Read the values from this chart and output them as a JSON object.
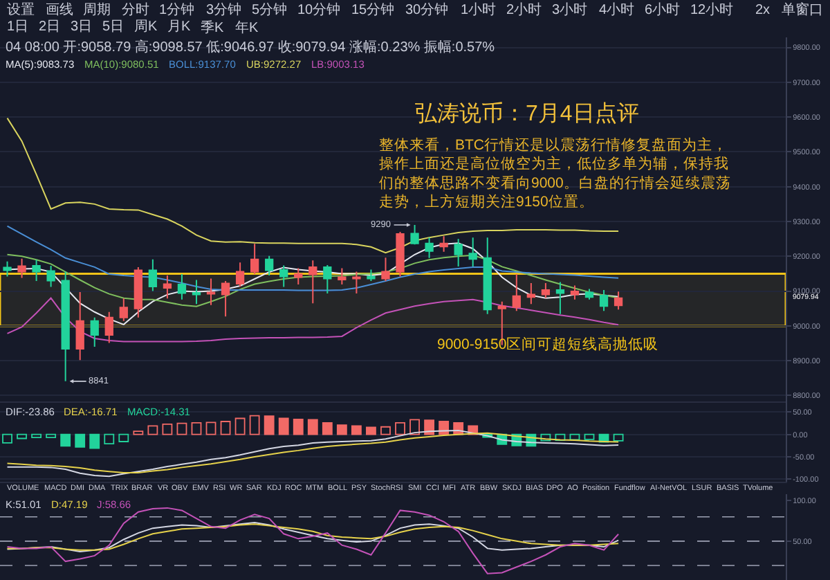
{
  "chart_data": [
    {
      "type": "candlestick",
      "title": "弘涛说币：7月4日点评",
      "subtitle": "整体来看，BTC行情还是以震荡行情修复盘面为主，操作上面还是高位做空为主，低位多单为辅，保持我们的整体思路不变看向9000。白盘的行情会延续震荡走势，上方短期关注9150位置。",
      "categories": [
        null,
        null,
        null,
        null,
        null,
        null,
        null,
        null,
        null,
        null,
        null,
        null,
        null,
        null,
        null,
        null,
        null,
        null,
        null,
        null,
        null,
        null,
        null,
        null,
        null,
        null,
        null,
        null,
        null,
        null,
        null,
        null,
        null,
        null,
        null,
        null,
        null,
        null,
        null,
        null,
        null,
        null,
        null,
        null,
        null,
        null,
        null,
        null,
        null,
        null,
        null,
        null,
        null,
        null
      ],
      "ohlc": [
        [
          9168,
          9185,
          9142,
          9160
        ],
        [
          9156,
          9193,
          9138,
          9172
        ],
        [
          9173,
          9190,
          9129,
          9156
        ],
        [
          9158,
          9173,
          9112,
          9130
        ],
        [
          9130,
          9156,
          8841,
          8934
        ],
        [
          8934,
          9097,
          8902,
          9014
        ],
        [
          9014,
          9024,
          8940,
          8974
        ],
        [
          8974,
          9040,
          8951,
          9024
        ],
        [
          9024,
          9079,
          9014,
          9053
        ],
        [
          9050,
          9169,
          9024,
          9160
        ],
        [
          9160,
          9191,
          9100,
          9113
        ],
        [
          9109,
          9145,
          9079,
          9120
        ],
        [
          9119,
          9149,
          9076,
          9094
        ],
        [
          9095,
          9132,
          9063,
          9090
        ],
        [
          9092,
          9136,
          9060,
          9096
        ],
        [
          9090,
          9129,
          9027,
          9122
        ],
        [
          9121,
          9182,
          9113,
          9156
        ],
        [
          9156,
          9236,
          9149,
          9191
        ],
        [
          9191,
          9201,
          9145,
          9160
        ],
        [
          9161,
          9174,
          9112,
          9142
        ],
        [
          9140,
          9166,
          9119,
          9149
        ],
        [
          9148,
          9188,
          9065,
          9169
        ],
        [
          9169,
          9175,
          9093,
          9136
        ],
        [
          9133,
          9166,
          9119,
          9140
        ],
        [
          9136,
          9156,
          9093,
          9140
        ],
        [
          9142,
          9162,
          9129,
          9136
        ],
        [
          9136,
          9196,
          9129,
          9156
        ],
        [
          9156,
          9270,
          9142,
          9264
        ],
        [
          9265,
          9290,
          9234,
          9237
        ],
        [
          9237,
          9254,
          9195,
          9215
        ],
        [
          9228,
          9258,
          9213,
          9237
        ],
        [
          9234,
          9250,
          9171,
          9205
        ],
        [
          9208,
          9254,
          9171,
          9192
        ],
        [
          9195,
          9254,
          9034,
          9047
        ],
        [
          9050,
          9070,
          8945,
          9056
        ],
        [
          9054,
          9149,
          9043,
          9086
        ],
        [
          9083,
          9123,
          9063,
          9090
        ],
        [
          9090,
          9123,
          9080,
          9103
        ],
        [
          9103,
          9126,
          9034,
          9094
        ],
        [
          9090,
          9116,
          9076,
          9099
        ],
        [
          9096,
          9106,
          9076,
          9083
        ],
        [
          9087,
          9103,
          9043,
          9057
        ],
        [
          9058.79,
          9098.57,
          9046.97,
          9079.94
        ],
        null,
        null,
        null,
        null,
        null,
        null,
        null,
        null,
        null,
        null,
        null
      ],
      "colors": [
        "#22d39b",
        "#f25b5e",
        "#22d39b",
        "#22d39b",
        "#22d39b",
        "#f25b5e",
        "#22d39b",
        "#f25b5e",
        "#f25b5e",
        "#f25b5e",
        "#22d39b",
        "#f25b5e",
        "#22d39b",
        "#22d39b",
        "#f25b5e",
        "#f25b5e",
        "#f25b5e",
        "#f25b5e",
        "#22d39b",
        "#22d39b",
        "#f25b5e",
        "#f25b5e",
        "#22d39b",
        "#f25b5e",
        "#f25b5e",
        "#22d39b",
        "#f25b5e",
        "#f25b5e",
        "#22d39b",
        "#22d39b",
        "#f25b5e",
        "#22d39b",
        "#22d39b",
        "#22d39b",
        "#f25b5e",
        "#f25b5e",
        "#f25b5e",
        "#f25b5e",
        "#22d39b",
        "#f25b5e",
        "#22d39b",
        "#22d39b",
        "#f25b5e",
        null,
        null,
        null,
        null,
        null,
        null,
        null,
        null,
        null,
        null,
        null
      ],
      "series": [
        {
          "name": "MA(5):9083.73",
          "type": "line",
          "color": "#e6e8f0",
          "values": [
            9162,
            9164,
            9165,
            9155,
            9110,
            9065,
            9040,
            9020,
            9004,
            9040,
            9070,
            9090,
            9100,
            9098,
            9100,
            9105,
            9115,
            9135,
            9155,
            9168,
            9162,
            9158,
            9155,
            9150,
            9150,
            9145,
            9150,
            9178,
            9205,
            9225,
            9235,
            9238,
            9222,
            9185,
            9140,
            9110,
            9088,
            9080,
            9083,
            9090,
            9092,
            9088,
            9083.73,
            null,
            null,
            null,
            null,
            null,
            null,
            null,
            null,
            null,
            null,
            null
          ]
        },
        {
          "name": "MA(10):9080.51",
          "type": "line",
          "color": "#7fbf5e",
          "values": [
            9205,
            9200,
            9190,
            9178,
            9155,
            9132,
            9110,
            9092,
            9080,
            9076,
            9076,
            9068,
            9060,
            9056,
            9070,
            9085,
            9105,
            9120,
            9128,
            9135,
            9140,
            9142,
            9143,
            9144,
            9148,
            9150,
            9155,
            9165,
            9180,
            9190,
            9196,
            9200,
            9203,
            9190,
            9170,
            9158,
            9145,
            9132,
            9120,
            9108,
            9097,
            9088,
            9080.51,
            null,
            null,
            null,
            null,
            null,
            null,
            null,
            null,
            null,
            null,
            null
          ]
        },
        {
          "name": "BOLL:9137.70",
          "type": "line",
          "color": "#4a8fd6",
          "values": [
            9287,
            9264,
            9241,
            9219,
            9195,
            9182,
            9169,
            9149,
            9145,
            9142,
            9140,
            9132,
            9123,
            9113,
            9105,
            9103,
            9103,
            9103,
            9103,
            9103,
            9102,
            9102,
            9102,
            9103,
            9109,
            9119,
            9129,
            9140,
            9149,
            9156,
            9161,
            9165,
            9169,
            9169,
            9158,
            9155,
            9152,
            9150,
            9148,
            9146,
            9143,
            9140,
            9137.7,
            null,
            null,
            null,
            null,
            null,
            null,
            null,
            null,
            null,
            null,
            null
          ]
        },
        {
          "name": "UB:9272.27",
          "type": "line",
          "color": "#d9d45e",
          "values": [
            9597,
            9531,
            9435,
            9336,
            9353,
            9355,
            9350,
            9336,
            9334,
            9333,
            9320,
            9307,
            9287,
            9261,
            9244,
            9241,
            9242,
            9239,
            9238,
            9238,
            9237,
            9237,
            9237,
            9237,
            9234,
            9227,
            9210,
            9225,
            9245,
            9254,
            9261,
            9268,
            9272,
            9274,
            9274,
            9276,
            9276,
            9276,
            9275,
            9275,
            9273,
            9272,
            9272.27,
            null,
            null,
            null,
            null,
            null,
            null,
            null,
            null,
            null,
            null,
            null
          ]
        },
        {
          "name": "LB:9003.13",
          "type": "line",
          "color": "#c452b8",
          "values": [
            8978,
            8997,
            9037,
            9080,
            9024,
            8984,
            8964,
            8958,
            8955,
            8955,
            8955,
            8955,
            8955,
            8956,
            8958,
            8962,
            8964,
            8965,
            8966,
            8966,
            8967,
            8967,
            8968,
            8970,
            8995,
            9017,
            9037,
            9047,
            9057,
            9064,
            9070,
            9073,
            9076,
            9068,
            9058,
            9052,
            9045,
            9038,
            9031,
            9025,
            9018,
            9010,
            9003.13,
            null,
            null,
            null,
            null,
            null,
            null,
            null,
            null,
            null,
            null,
            null
          ]
        }
      ],
      "ylim": [
        8783,
        9829
      ],
      "yticks": [
        {
          "value": 8800,
          "label": "8800.00"
        },
        {
          "value": 8900,
          "label": "8900.00"
        },
        {
          "value": 9000,
          "label": "9000.00"
        },
        {
          "value": 9100,
          "label": "9100.00"
        },
        {
          "value": 9200,
          "label": "9200.00"
        },
        {
          "value": 9300,
          "label": "9300.00"
        },
        {
          "value": 9400,
          "label": "9400.00"
        },
        {
          "value": 9500,
          "label": "9500.00"
        },
        {
          "value": 9600,
          "label": "9600.00"
        },
        {
          "value": 9700,
          "label": "9700.00"
        },
        {
          "value": 9800,
          "label": "9800.00"
        }
      ],
      "bands": [
        {
          "axis": "y",
          "from": 9000,
          "to": 9150,
          "label": "9000-9150区间可超短线高抛低吸",
          "color": "#f2c318"
        }
      ],
      "annotations": [
        "设置",
        "画线",
        "周期",
        "分时",
        "1分钟",
        "3分钟",
        "5分钟",
        "10分钟",
        "15分钟",
        "30分钟",
        "1小时",
        "2小时",
        "3小时",
        "4小时",
        "6小时",
        "12小时",
        "1日",
        "2日",
        "3日",
        "5日",
        "周K",
        "月K",
        "季K",
        "年K",
        "2x",
        "单窗口",
        "04 08:00 开:9058.79 高:9098.57 低:9046.97 收:9079.94 涨幅:0.23% 振幅:0.57%",
        "9290",
        "8841",
        "9079.94"
      ],
      "grid": "y",
      "tick_labels": "y"
    },
    {
      "type": "bar",
      "categories": [
        null,
        null,
        null,
        null,
        null,
        null,
        null,
        null,
        null,
        null,
        null,
        null,
        null,
        null,
        null,
        null,
        null,
        null,
        null,
        null,
        null,
        null,
        null,
        null,
        null,
        null,
        null,
        null,
        null,
        null,
        null,
        null,
        null,
        null,
        null,
        null,
        null,
        null,
        null,
        null,
        null,
        null,
        null,
        null,
        null,
        null,
        null,
        null,
        null,
        null,
        null,
        null,
        null,
        null
      ],
      "series": [
        {
          "name": "DIF:-23.86",
          "type": "line",
          "color": "#d4d7e3",
          "values": [
            -73,
            -73,
            -73,
            -74,
            -78,
            -87,
            -92,
            -94,
            -88,
            -83,
            -78,
            -72,
            -67,
            -62,
            -56,
            -52,
            -46,
            -39,
            -32,
            -27,
            -24,
            -19,
            -17,
            -16,
            -15,
            -14,
            -10,
            -3,
            4,
            7,
            8,
            9,
            3,
            -3,
            -12,
            -16,
            -18,
            -19,
            -20,
            -21,
            -23,
            -25,
            -23.86,
            null,
            null,
            null,
            null,
            null,
            null,
            null,
            null,
            null,
            null,
            null
          ]
        },
        {
          "name": "DEA:-16.71",
          "type": "line",
          "color": "#e6d24b",
          "values": [
            -65,
            -67,
            -69,
            -70,
            -72,
            -75,
            -80,
            -83,
            -86,
            -86,
            -82,
            -79,
            -74,
            -70,
            -66,
            -61,
            -56,
            -50,
            -45,
            -40,
            -36,
            -31,
            -27,
            -24,
            -22,
            -20,
            -17,
            -12,
            -8,
            -5,
            -2,
            0,
            2,
            3,
            0,
            -4,
            -7,
            -10,
            -12,
            -13,
            -15,
            -16,
            -16.71,
            null,
            null,
            null,
            null,
            null,
            null,
            null,
            null,
            null,
            null,
            null
          ]
        },
        {
          "name": "MACD:-14.31",
          "color": "#22d39b",
          "values": [
            -19,
            -9,
            -7,
            -7,
            -26,
            -28,
            -31,
            -21,
            -16,
            7,
            19,
            23,
            25,
            26,
            27,
            29,
            36,
            42,
            41,
            36,
            34,
            33,
            26,
            21,
            19,
            16,
            17,
            26,
            33,
            32,
            29,
            26,
            19,
            -6,
            -22,
            -25,
            -26,
            -14,
            -13,
            -12,
            -11,
            -17,
            -14.31,
            null,
            null,
            null,
            null,
            null,
            null,
            null,
            null,
            null,
            null,
            null
          ],
          "colors": [
            "#22d39b",
            "#22d39b",
            "#22d39b",
            "#22d39b",
            "#22d39b",
            "#22d39b",
            "#22d39b",
            "#22d39b",
            "#22d39b",
            "#f26a66",
            "#f26a66",
            "#f26a66",
            "#f26a66",
            "#f26a66",
            "#f26a66",
            "#f26a66",
            "#f26a66",
            "#f26a66",
            "#f26a66",
            "#f26a66",
            "#f26a66",
            "#f26a66",
            "#f26a66",
            "#f26a66",
            "#f26a66",
            "#f26a66",
            "#f26a66",
            "#f26a66",
            "#f26a66",
            "#f26a66",
            "#f26a66",
            "#f26a66",
            "#f26a66",
            "#22d39b",
            "#22d39b",
            "#22d39b",
            "#22d39b",
            "#22d39b",
            "#22d39b",
            "#22d39b",
            "#22d39b",
            "#22d39b",
            "#22d39b",
            null,
            null,
            null,
            null,
            null,
            null,
            null,
            null,
            null,
            null,
            null
          ]
        }
      ],
      "ylim": [
        -106,
        74
      ],
      "yticks": [
        {
          "value": 50,
          "label": "50.00"
        },
        {
          "value": 0,
          "label": "0.00"
        },
        {
          "value": -50,
          "label": "-50.00"
        },
        {
          "value": -100,
          "label": "-100.00"
        }
      ],
      "annotations": [
        "VOLUME",
        "MACD",
        "DMI",
        "DMA",
        "TRIX",
        "BRAR",
        "VR",
        "OBV",
        "EMV",
        "RSI",
        "WR",
        "SAR",
        "KDJ",
        "ROC",
        "MTM",
        "BOLL",
        "PSY",
        "StochRSI",
        "SMI",
        "CCI",
        "MFI",
        "ATR",
        "BBW",
        "SKDJ",
        "BIAS",
        "DPO",
        "AO",
        "Position",
        "Fundflow",
        "AI-NetVOL",
        "LSUR",
        "BASIS",
        "TVolume"
      ],
      "grid": "y",
      "tick_labels": "y"
    },
    {
      "type": "line",
      "categories": [
        null,
        null,
        null,
        null,
        null,
        null,
        null,
        null,
        null,
        null,
        null,
        null,
        null,
        null,
        null,
        null,
        null,
        null,
        null,
        null,
        null,
        null,
        null,
        null,
        null,
        null,
        null,
        null,
        null,
        null,
        null,
        null,
        null,
        null,
        null,
        null,
        null,
        null,
        null,
        null,
        null,
        null,
        null,
        null,
        null,
        null,
        null,
        null,
        null,
        null,
        null,
        null,
        null,
        null
      ],
      "series": [
        {
          "name": "K:51.01",
          "color": "#d4d7e3",
          "values": [
            40,
            41,
            42,
            43,
            40,
            37,
            39,
            42,
            52,
            60,
            66,
            68,
            70,
            69,
            67,
            69,
            71,
            73,
            70,
            65,
            61,
            57,
            53,
            51,
            49,
            50,
            57,
            66,
            70,
            71,
            69,
            66,
            55,
            41,
            39,
            40,
            41,
            43,
            45,
            45,
            45,
            43,
            51.01,
            null,
            null,
            null,
            null,
            null,
            null,
            null,
            null,
            null,
            null,
            null
          ]
        },
        {
          "name": "D:47.19",
          "color": "#e6d24b",
          "values": [
            41,
            41,
            42,
            42,
            40,
            39,
            39,
            40,
            46,
            53,
            59,
            62,
            65,
            66,
            67,
            68,
            70,
            71,
            69,
            67,
            65,
            62,
            57,
            55,
            54,
            53,
            56,
            61,
            65,
            67,
            68,
            67,
            63,
            58,
            53,
            50,
            47,
            46,
            45,
            45,
            45,
            46,
            47.19,
            null,
            null,
            null,
            null,
            null,
            null,
            null,
            null,
            null,
            null,
            null
          ]
        },
        {
          "name": "J:58.66",
          "color": "#c452b8",
          "values": [
            43,
            41,
            41,
            43,
            25,
            28,
            32,
            45,
            72,
            86,
            90,
            91,
            88,
            78,
            68,
            66,
            76,
            83,
            78,
            59,
            53,
            56,
            60,
            45,
            40,
            33,
            60,
            88,
            86,
            82,
            74,
            62,
            35,
            10,
            11,
            18,
            25,
            33,
            43,
            47,
            45,
            39,
            58.66,
            null,
            null,
            null,
            null,
            null,
            null,
            null,
            null,
            null,
            null,
            null
          ]
        }
      ],
      "ylim": [
        2,
        108
      ],
      "yticks": [
        {
          "value": 100,
          "label": "100.00"
        },
        {
          "value": 50,
          "label": "50.00"
        }
      ],
      "ref_lines": [
        {
          "axis": "y",
          "value": 80,
          "color": "#9ea3b5",
          "line_style": "dashed"
        },
        {
          "axis": "y",
          "value": 50,
          "color": "#9ea3b5",
          "line_style": "dashed"
        },
        {
          "axis": "y",
          "value": 20,
          "color": "#9ea3b5",
          "line_style": "dashed"
        }
      ],
      "tick_labels": "y"
    }
  ]
}
